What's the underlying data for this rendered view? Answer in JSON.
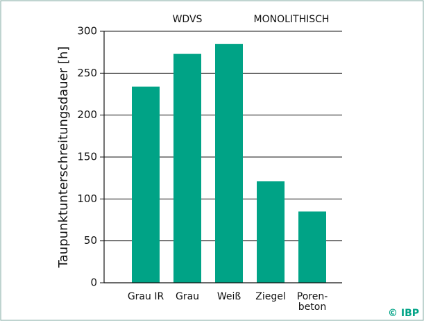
{
  "chart_data": {
    "type": "bar",
    "ylabel": "Taupunktunterschreitungsdauer [h]",
    "categories": [
      "Grau IR",
      "Grau",
      "Weiß",
      "Ziegel",
      "Poren-\nbeton"
    ],
    "values": [
      234,
      273,
      285,
      121,
      85
    ],
    "color": "#00a386",
    "ylim": [
      0,
      300
    ],
    "yticks": [
      0,
      50,
      100,
      150,
      200,
      250,
      300
    ],
    "grid": true,
    "annotations": [
      "WDVS",
      "MONOLITHISCH"
    ],
    "credit": "© IBP"
  }
}
